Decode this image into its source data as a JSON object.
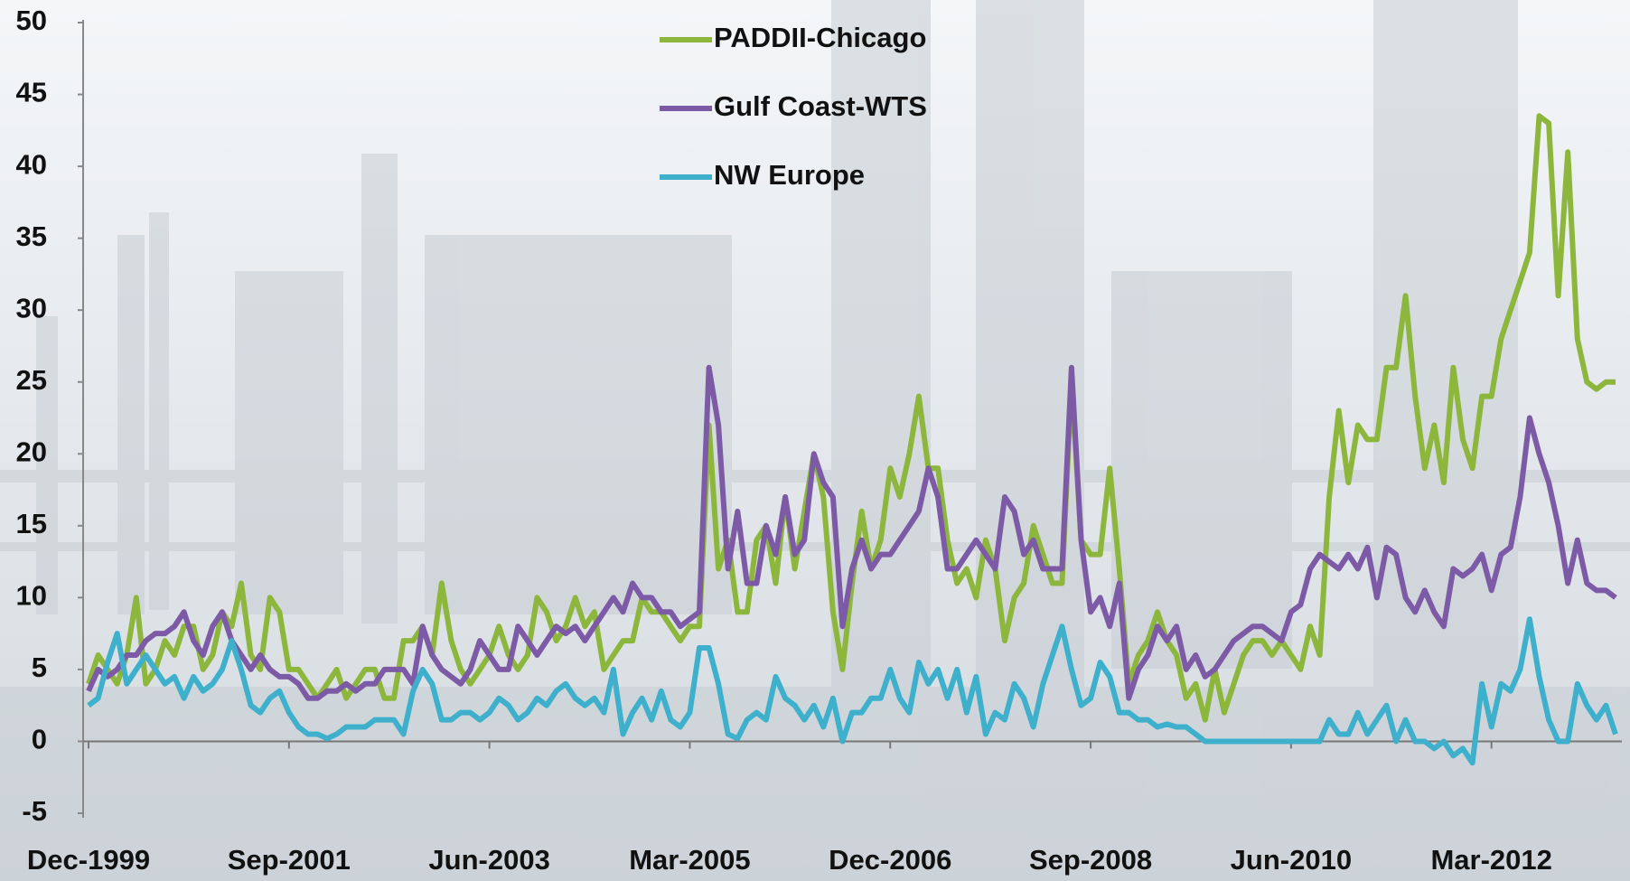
{
  "chart_data": {
    "type": "line",
    "categories": [
      "Dec-1999",
      null,
      null,
      null,
      null,
      null,
      null,
      null,
      null,
      null,
      null,
      null,
      null,
      null,
      null,
      null,
      null,
      null,
      null,
      null,
      null,
      "Sep-2001",
      null,
      null,
      null,
      null,
      null,
      null,
      null,
      null,
      null,
      null,
      null,
      null,
      null,
      null,
      null,
      null,
      null,
      null,
      null,
      null,
      "Jun-2003",
      null,
      null,
      null,
      null,
      null,
      null,
      null,
      null,
      null,
      null,
      null,
      null,
      null,
      null,
      null,
      null,
      null,
      null,
      null,
      null,
      "Mar-2005",
      null,
      null,
      null,
      null,
      null,
      null,
      null,
      null,
      null,
      null,
      null,
      null,
      null,
      null,
      null,
      null,
      null,
      null,
      null,
      null,
      "Dec-2006",
      null,
      null,
      null,
      null,
      null,
      null,
      null,
      null,
      null,
      null,
      null,
      null,
      null,
      null,
      null,
      null,
      null,
      null,
      null,
      null,
      "Sep-2008",
      null,
      null,
      null,
      null,
      null,
      null,
      null,
      null,
      null,
      null,
      null,
      null,
      null,
      null,
      null,
      null,
      null,
      null,
      null,
      null,
      "Jun-2010",
      null,
      null,
      null,
      null,
      null,
      null,
      null,
      null,
      null,
      null,
      null,
      null,
      null,
      null,
      null,
      null,
      null,
      null,
      null,
      null,
      "Mar-2012",
      null,
      null,
      null,
      null,
      null,
      null,
      null,
      null,
      null,
      null,
      null,
      null,
      null
    ],
    "series": [
      {
        "name": "PADDII-Chicago",
        "color": "#8db63c",
        "values": [
          4,
          6,
          5,
          4,
          6,
          10,
          4,
          5,
          7,
          6,
          8,
          8,
          5,
          6,
          9,
          8,
          11,
          6,
          5,
          10,
          9,
          5,
          5,
          4,
          3,
          4,
          5,
          3,
          4,
          5,
          5,
          3,
          3,
          7,
          7,
          8,
          6,
          11,
          7,
          5,
          4,
          5,
          6,
          8,
          6,
          5,
          6,
          10,
          9,
          7,
          8,
          10,
          8,
          9,
          5,
          6,
          7,
          7,
          10,
          9,
          9,
          8,
          7,
          8,
          8,
          22,
          12,
          14,
          9,
          9,
          14,
          15,
          11,
          17,
          12,
          16,
          20,
          17,
          9,
          5,
          11,
          16,
          12,
          14,
          19,
          17,
          20,
          24,
          19,
          19,
          14,
          11,
          12,
          10,
          14,
          12,
          7,
          10,
          11,
          15,
          13,
          11,
          11,
          25,
          14,
          13,
          13,
          19,
          12,
          4,
          6,
          7,
          9,
          7,
          6,
          3,
          4,
          1.5,
          5,
          2,
          4,
          6,
          7,
          7,
          6,
          7,
          6,
          5,
          8,
          6,
          17,
          23,
          18,
          22,
          21,
          21,
          26,
          26,
          31,
          24,
          19,
          22,
          18,
          26,
          21,
          19,
          24,
          24,
          28,
          30,
          32,
          34,
          43.5,
          43,
          31,
          41,
          28,
          25,
          24.5,
          25,
          25
        ]
      },
      {
        "name": "Gulf Coast-WTS",
        "color": "#7d5aa6",
        "values": [
          3.5,
          5,
          4.5,
          5,
          6,
          6,
          7,
          7.5,
          7.5,
          8,
          9,
          7,
          6,
          8,
          9,
          7,
          6,
          5,
          6,
          5,
          4.5,
          4.5,
          4,
          3,
          3,
          3.5,
          3.5,
          4,
          3.5,
          4,
          4,
          5,
          5,
          5,
          4,
          8,
          6,
          5,
          4.5,
          4,
          5,
          7,
          6,
          5,
          5,
          8,
          7,
          6,
          7,
          8,
          7.5,
          8,
          7,
          8,
          9,
          10,
          9,
          11,
          10,
          10,
          9,
          9,
          8,
          8.5,
          9,
          26,
          22,
          12,
          16,
          11,
          11,
          15,
          13,
          17,
          13,
          14,
          20,
          18,
          17,
          8,
          12,
          14,
          12,
          13,
          13,
          14,
          15,
          16,
          19,
          17,
          12,
          12,
          13,
          14,
          13,
          12,
          17,
          16,
          13,
          14,
          12,
          12,
          12,
          26,
          14,
          9,
          10,
          8,
          11,
          3,
          5,
          6,
          8,
          7,
          8,
          5,
          6,
          4.5,
          5,
          6,
          7,
          7.5,
          8,
          8,
          7.5,
          7,
          9,
          9.5,
          12,
          13,
          12.5,
          12,
          13,
          12,
          13.5,
          10,
          13.5,
          13,
          10,
          9,
          10.5,
          9,
          8,
          12,
          11.5,
          12,
          13,
          10.5,
          13,
          13.5,
          17,
          22.5,
          20,
          18,
          15,
          11,
          14,
          11,
          10.5,
          10.5,
          10
        ]
      },
      {
        "name": "NW Europe",
        "color": "#3fb0cc",
        "values": [
          2.5,
          3,
          5.5,
          7.5,
          4,
          5,
          6,
          5,
          4,
          4.5,
          3,
          4.5,
          3.5,
          4,
          5,
          7,
          5,
          2.5,
          2,
          3,
          3.5,
          2,
          1,
          0.5,
          0.5,
          0.2,
          0.5,
          1,
          1,
          1,
          1.5,
          1.5,
          1.5,
          0.5,
          3.5,
          5,
          4,
          1.5,
          1.5,
          2,
          2,
          1.5,
          2,
          3,
          2.5,
          1.5,
          2,
          3,
          2.5,
          3.5,
          4,
          3,
          2.5,
          3,
          2,
          5,
          0.5,
          2,
          3,
          1.5,
          3.5,
          1.5,
          1,
          2,
          6.5,
          6.5,
          4,
          0.5,
          0.2,
          1.5,
          2,
          1.5,
          4.5,
          3,
          2.5,
          1.5,
          2.5,
          1,
          3,
          0,
          2,
          2,
          3,
          3,
          5,
          3,
          2,
          5.5,
          4,
          5,
          3,
          5,
          2,
          4.5,
          0.5,
          2,
          1.5,
          4,
          3,
          1,
          4,
          6,
          8,
          5,
          2.5,
          3,
          5.5,
          4.5,
          2,
          2,
          1.5,
          1.5,
          1,
          1.2,
          1,
          1,
          0.5,
          0,
          0,
          0,
          0,
          0,
          0,
          0,
          0,
          0,
          0,
          0,
          0,
          0,
          1.5,
          0.5,
          0.5,
          2,
          0.5,
          1.5,
          2.5,
          0,
          1.5,
          0,
          0,
          -0.5,
          0,
          -1,
          -0.5,
          -1.5,
          4,
          1,
          4,
          3.5,
          5,
          8.5,
          4.5,
          1.5,
          0,
          0,
          4,
          2.5,
          1.5,
          2.5,
          0.5
        ]
      }
    ],
    "ylim": [
      -5,
      50
    ],
    "yticks": [
      -5,
      0,
      5,
      10,
      15,
      20,
      25,
      30,
      35,
      40,
      45,
      50
    ]
  }
}
